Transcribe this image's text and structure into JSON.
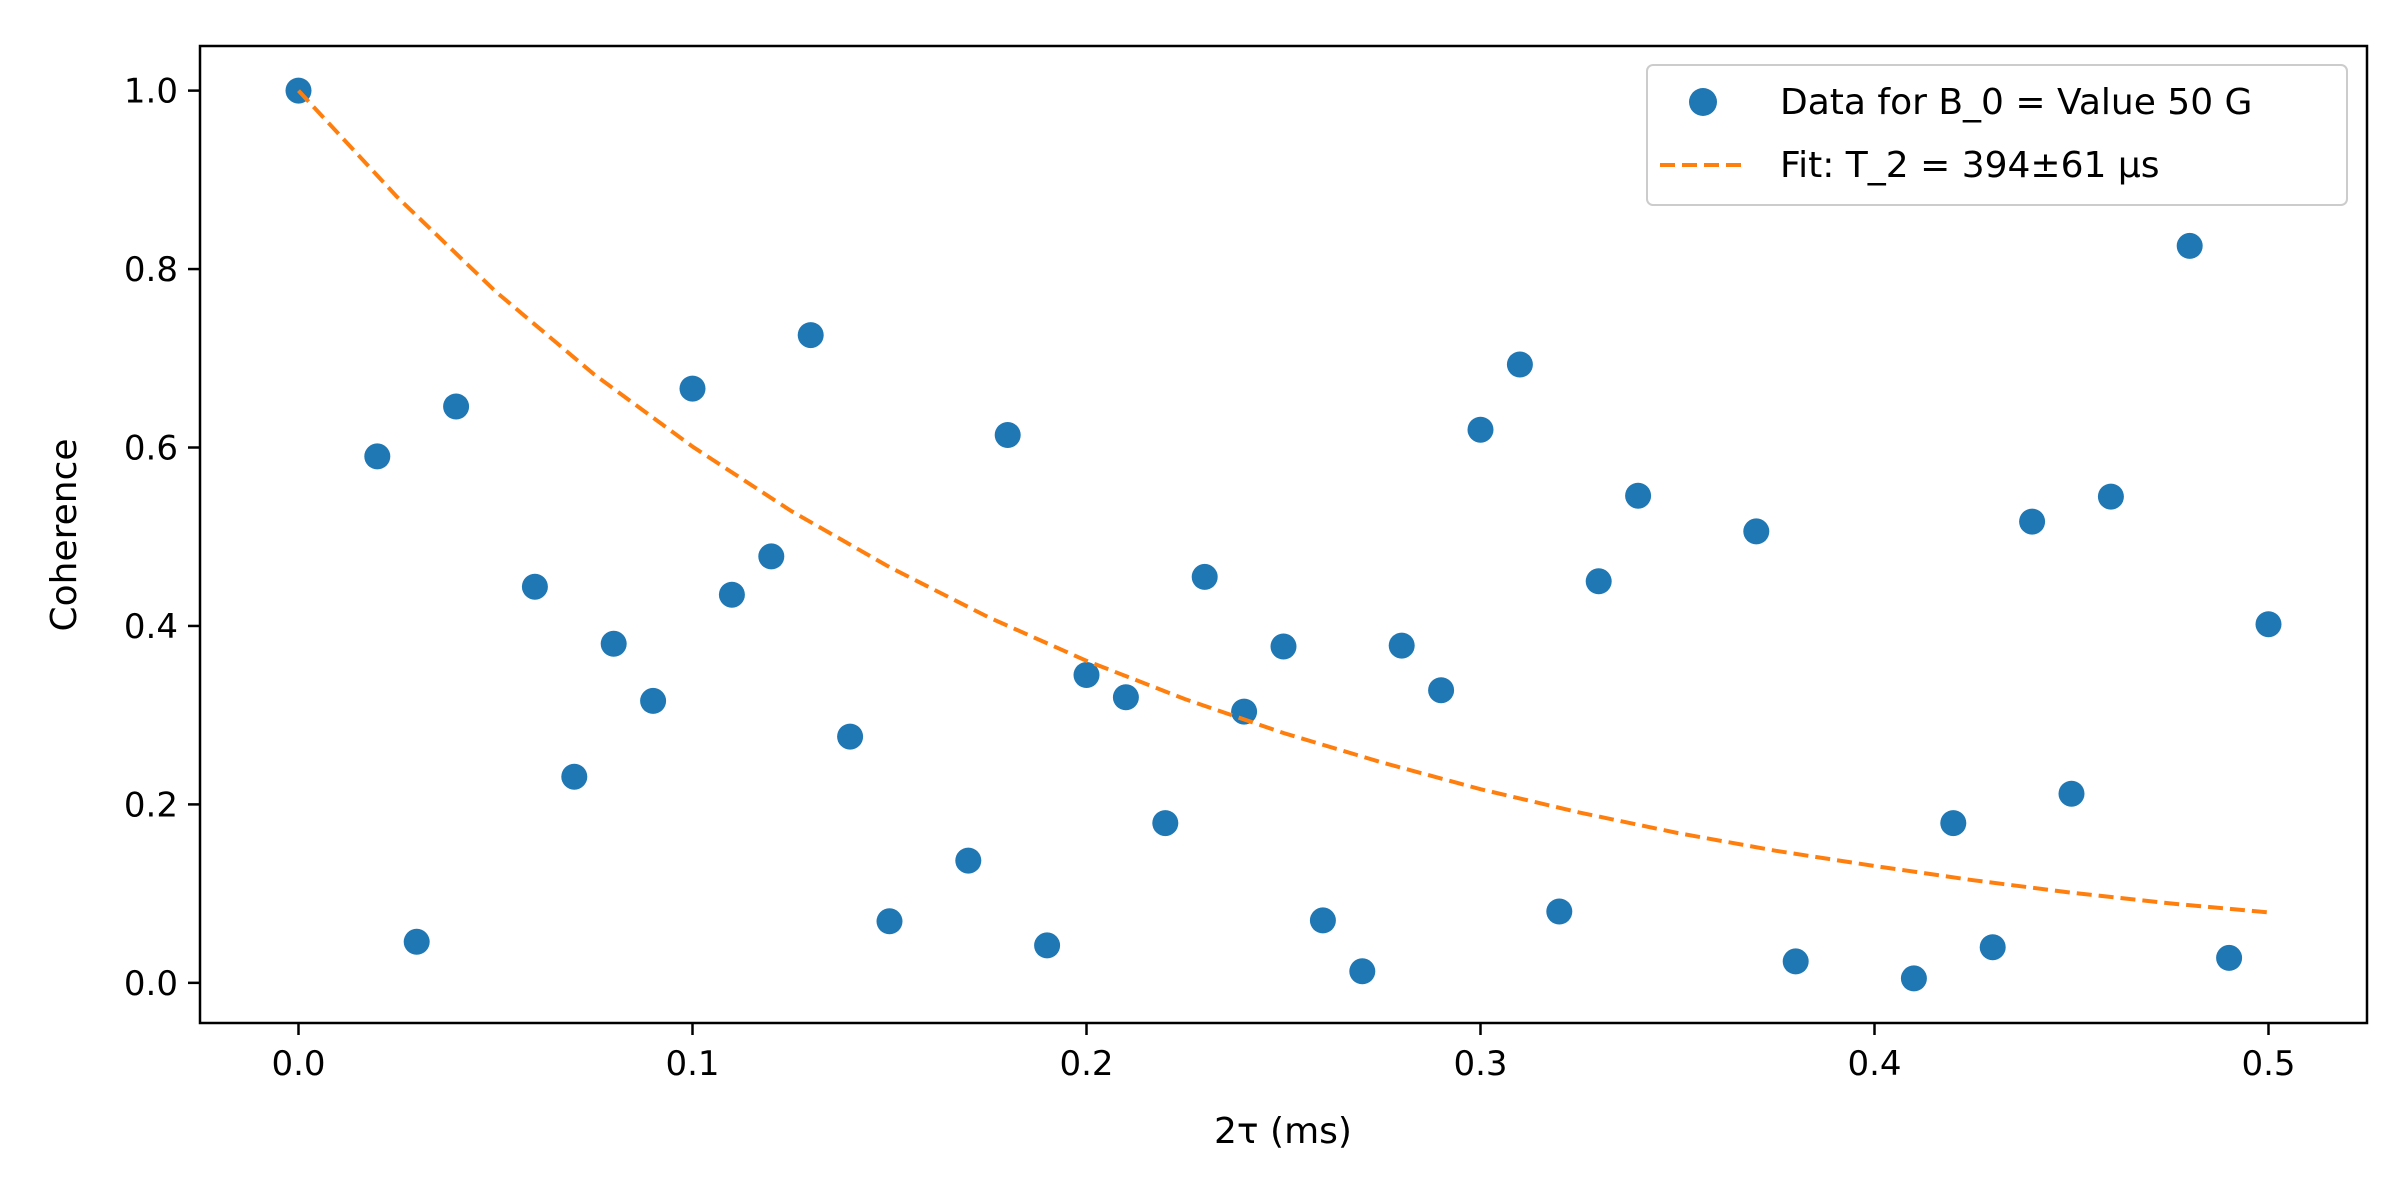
{
  "chart_data": {
    "type": "scatter",
    "xlabel": "2τ (ms)",
    "ylabel": "Coherence",
    "xlim": [
      -0.025,
      0.525
    ],
    "ylim": [
      -0.045,
      1.05
    ],
    "xticks": [
      0.0,
      0.1,
      0.2,
      0.3,
      0.4,
      0.5
    ],
    "xtick_labels": [
      "0.0",
      "0.1",
      "0.2",
      "0.3",
      "0.4",
      "0.5"
    ],
    "yticks": [
      0.0,
      0.2,
      0.4,
      0.6,
      0.8,
      1.0
    ],
    "ytick_labels": [
      "0.0",
      "0.2",
      "0.4",
      "0.6",
      "0.8",
      "1.0"
    ],
    "grid": false,
    "legend_position": "top-right",
    "series": [
      {
        "name": "Data for B_0 = Value 50 G",
        "kind": "scatter",
        "color": "#1f77b4",
        "x": [
          0.0,
          0.02,
          0.03,
          0.04,
          0.06,
          0.07,
          0.08,
          0.09,
          0.1,
          0.11,
          0.12,
          0.13,
          0.14,
          0.15,
          0.17,
          0.18,
          0.19,
          0.2,
          0.21,
          0.22,
          0.23,
          0.24,
          0.25,
          0.26,
          0.27,
          0.28,
          0.29,
          0.3,
          0.31,
          0.32,
          0.33,
          0.34,
          0.37,
          0.38,
          0.41,
          0.42,
          0.43,
          0.44,
          0.45,
          0.46,
          0.48,
          0.49,
          0.5
        ],
        "y": [
          1.0,
          0.59,
          0.046,
          0.646,
          0.444,
          0.231,
          0.38,
          0.316,
          0.666,
          0.435,
          0.478,
          0.726,
          0.276,
          0.069,
          0.137,
          0.614,
          0.042,
          0.345,
          0.32,
          0.179,
          0.455,
          0.304,
          0.377,
          0.07,
          0.013,
          0.378,
          0.328,
          0.62,
          0.693,
          0.08,
          0.45,
          0.546,
          0.506,
          0.024,
          0.005,
          0.179,
          0.04,
          0.517,
          0.212,
          0.545,
          0.826,
          0.028,
          0.402
        ]
      },
      {
        "name": "Fit: T_2 = 394±61 μs",
        "kind": "line",
        "style": "dashed",
        "color": "#ff7f0e",
        "x": [
          0.0,
          0.025,
          0.05,
          0.075,
          0.1,
          0.125,
          0.15,
          0.175,
          0.2,
          0.225,
          0.25,
          0.275,
          0.3,
          0.325,
          0.35,
          0.375,
          0.4,
          0.425,
          0.45,
          0.475,
          0.5
        ],
        "y": [
          1.0,
          0.881,
          0.775,
          0.682,
          0.601,
          0.529,
          0.466,
          0.41,
          0.361,
          0.318,
          0.28,
          0.247,
          0.217,
          0.191,
          0.168,
          0.148,
          0.131,
          0.115,
          0.101,
          0.089,
          0.079
        ]
      }
    ]
  }
}
